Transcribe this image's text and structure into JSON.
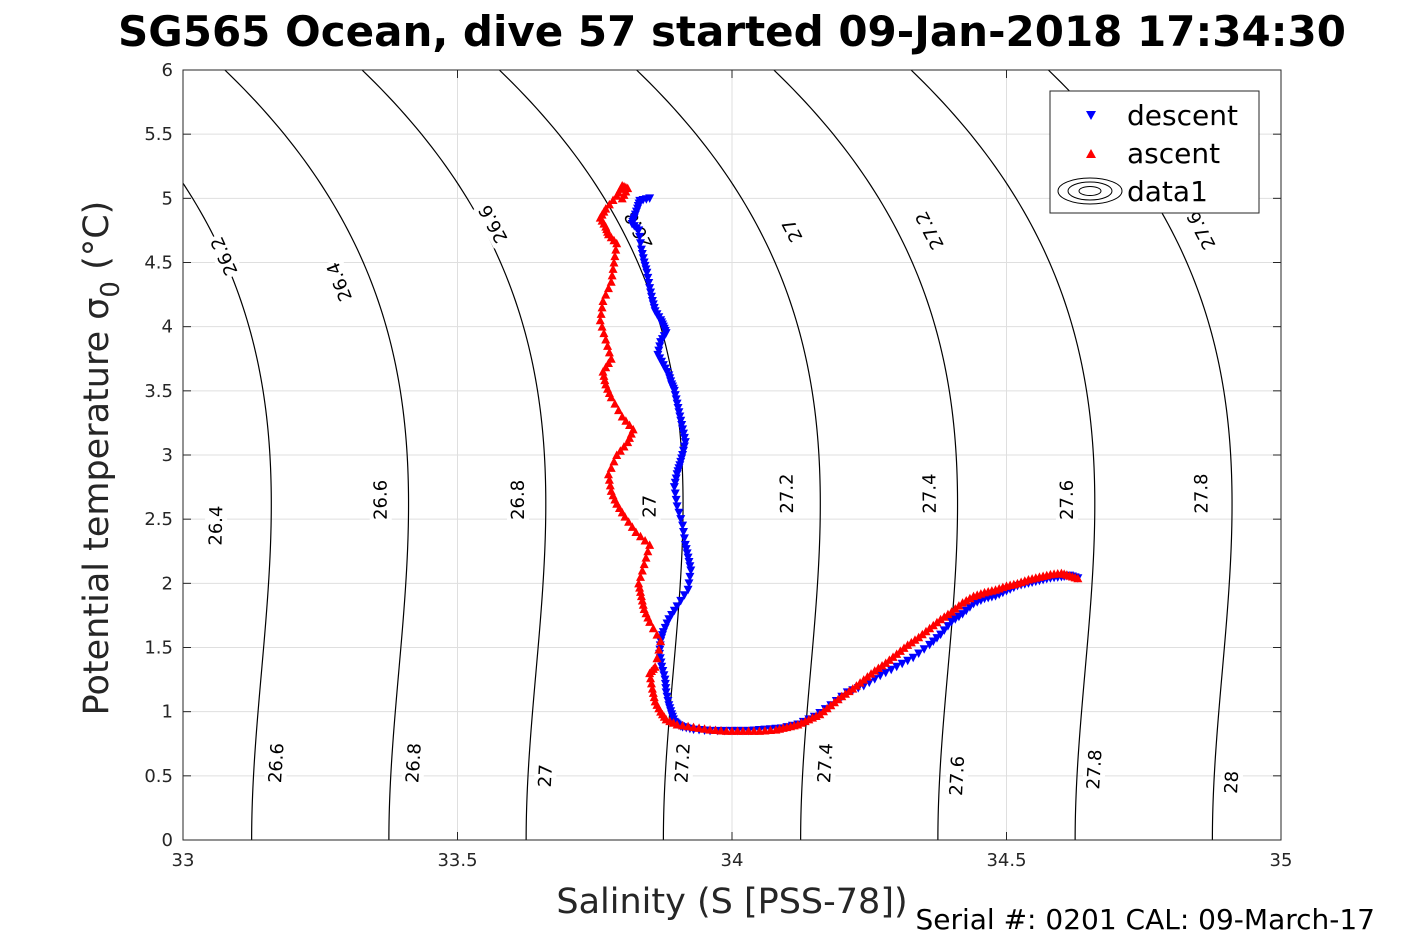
{
  "chart_data": {
    "type": "scatter",
    "title": "SG565 Ocean, dive 57 started 09-Jan-2018 17:34:30",
    "xlabel": "Salinity (S [PSS-78])",
    "ylabel_main": "Potential temperature σ",
    "ylabel_sub": "0",
    "ylabel_unit": "(°C)",
    "xlim": [
      33,
      35
    ],
    "ylim": [
      0,
      6
    ],
    "xticks": [
      "33",
      "33.5",
      "34",
      "34.5",
      "35"
    ],
    "yticks": [
      "0",
      "0.5",
      "1",
      "1.5",
      "2",
      "2.5",
      "3",
      "3.5",
      "4",
      "4.5",
      "5",
      "5.5",
      "6"
    ],
    "grid": true,
    "legend": {
      "position": "top-right",
      "entries": [
        {
          "name": "descent",
          "marker": "triangle-down",
          "color": "#0000ff"
        },
        {
          "name": "ascent",
          "marker": "triangle-up",
          "color": "#ff0000"
        },
        {
          "name": "data1",
          "marker": "contour",
          "color": "#000000"
        }
      ]
    },
    "contours": [
      {
        "level": 26.2,
        "labels": [
          {
            "x": 33.075,
            "y": 4.55
          }
        ]
      },
      {
        "level": 26.4,
        "labels": [
          {
            "x": 33.06,
            "y": 2.45
          },
          {
            "x": 33.285,
            "y": 4.35
          }
        ]
      },
      {
        "level": 26.6,
        "labels": [
          {
            "x": 33.17,
            "y": 0.6
          },
          {
            "x": 33.36,
            "y": 2.65
          },
          {
            "x": 33.565,
            "y": 4.8
          }
        ]
      },
      {
        "level": 26.8,
        "labels": [
          {
            "x": 33.42,
            "y": 0.6
          },
          {
            "x": 33.61,
            "y": 2.65
          },
          {
            "x": 33.83,
            "y": 4.75
          }
        ]
      },
      {
        "level": 27,
        "labels": [
          {
            "x": 33.66,
            "y": 0.5
          },
          {
            "x": 33.85,
            "y": 2.6
          },
          {
            "x": 34.11,
            "y": 4.75
          }
        ]
      },
      {
        "level": 27.2,
        "labels": [
          {
            "x": 33.91,
            "y": 0.6
          },
          {
            "x": 34.1,
            "y": 2.7
          },
          {
            "x": 34.36,
            "y": 4.75
          }
        ]
      },
      {
        "level": 27.4,
        "labels": [
          {
            "x": 34.17,
            "y": 0.6
          },
          {
            "x": 34.36,
            "y": 2.7
          }
        ]
      },
      {
        "level": 27.6,
        "labels": [
          {
            "x": 34.41,
            "y": 0.5
          },
          {
            "x": 34.61,
            "y": 2.65
          },
          {
            "x": 34.855,
            "y": 4.75
          }
        ]
      },
      {
        "level": 27.8,
        "labels": [
          {
            "x": 34.66,
            "y": 0.55
          },
          {
            "x": 34.855,
            "y": 2.7
          }
        ]
      },
      {
        "level": 28,
        "labels": [
          {
            "x": 34.91,
            "y": 0.45
          }
        ]
      }
    ],
    "series": [
      {
        "name": "descent",
        "color": "#0000ff",
        "marker": "triangle-down",
        "x": [
          33.85,
          33.832,
          33.828,
          33.822,
          33.818,
          33.83,
          33.835,
          33.84,
          33.845,
          33.85,
          33.855,
          33.86,
          33.87,
          33.875,
          33.88,
          33.87,
          33.865,
          33.875,
          33.885,
          33.89,
          33.895,
          33.9,
          33.905,
          33.91,
          33.915,
          33.91,
          33.905,
          33.9,
          33.895,
          33.9,
          33.91,
          33.915,
          33.92,
          33.925,
          33.92,
          33.9,
          33.885,
          33.875,
          33.87,
          33.868,
          33.872,
          33.878,
          33.88,
          33.885,
          33.89,
          33.895,
          33.9,
          33.91,
          33.93,
          33.96,
          34.0,
          34.03,
          34.06,
          34.09,
          34.12,
          34.15,
          34.18,
          34.21,
          34.24,
          34.27,
          34.3,
          34.33,
          34.36,
          34.38,
          34.4,
          34.42,
          34.44,
          34.46,
          34.48,
          34.5,
          34.52,
          34.54,
          34.56,
          34.58,
          34.6,
          34.615,
          34.63
        ],
        "y": [
          5.0,
          4.98,
          4.92,
          4.85,
          4.8,
          4.75,
          4.6,
          4.5,
          4.42,
          4.3,
          4.2,
          4.12,
          4.05,
          4.0,
          3.95,
          3.88,
          3.78,
          3.7,
          3.62,
          3.55,
          3.5,
          3.4,
          3.3,
          3.2,
          3.1,
          3.0,
          2.92,
          2.85,
          2.75,
          2.6,
          2.45,
          2.3,
          2.2,
          2.1,
          1.95,
          1.82,
          1.72,
          1.62,
          1.55,
          1.45,
          1.35,
          1.25,
          1.15,
          1.05,
          0.98,
          0.92,
          0.9,
          0.88,
          0.86,
          0.85,
          0.85,
          0.85,
          0.86,
          0.87,
          0.9,
          0.96,
          1.05,
          1.15,
          1.2,
          1.28,
          1.35,
          1.42,
          1.52,
          1.6,
          1.7,
          1.76,
          1.84,
          1.88,
          1.9,
          1.94,
          1.98,
          2.0,
          2.02,
          2.04,
          2.05,
          2.06,
          2.04
        ]
      },
      {
        "name": "ascent",
        "color": "#ff0000",
        "marker": "triangle-up",
        "x": [
          34.63,
          34.615,
          34.6,
          34.58,
          34.56,
          34.54,
          34.52,
          34.5,
          34.48,
          34.46,
          34.44,
          34.42,
          34.4,
          34.38,
          34.36,
          34.34,
          34.32,
          34.3,
          34.28,
          34.26,
          34.24,
          34.22,
          34.2,
          34.18,
          34.16,
          34.14,
          34.12,
          34.1,
          34.08,
          34.05,
          34.02,
          33.99,
          33.96,
          33.93,
          33.9,
          33.88,
          33.87,
          33.86,
          33.855,
          33.85,
          33.86,
          33.87,
          33.85,
          33.84,
          33.835,
          33.83,
          33.84,
          33.85,
          33.825,
          33.805,
          33.79,
          33.78,
          33.775,
          33.79,
          33.81,
          33.82,
          33.8,
          33.78,
          33.77,
          33.765,
          33.78,
          33.77,
          33.76,
          33.765,
          33.78,
          33.785,
          33.79,
          33.775,
          33.77,
          33.76,
          33.77,
          33.79,
          33.8,
          33.81,
          33.8
        ],
        "y": [
          2.04,
          2.06,
          2.08,
          2.07,
          2.05,
          2.03,
          2.0,
          1.98,
          1.95,
          1.93,
          1.9,
          1.85,
          1.78,
          1.72,
          1.65,
          1.58,
          1.52,
          1.45,
          1.38,
          1.32,
          1.25,
          1.18,
          1.12,
          1.05,
          0.98,
          0.94,
          0.9,
          0.88,
          0.86,
          0.85,
          0.85,
          0.85,
          0.86,
          0.88,
          0.9,
          0.94,
          1.0,
          1.08,
          1.18,
          1.3,
          1.35,
          1.55,
          1.7,
          1.8,
          1.9,
          2.0,
          2.15,
          2.3,
          2.4,
          2.52,
          2.62,
          2.72,
          2.85,
          3.0,
          3.1,
          3.2,
          3.3,
          3.45,
          3.55,
          3.65,
          3.75,
          3.9,
          4.05,
          4.2,
          4.35,
          4.5,
          4.65,
          4.72,
          4.78,
          4.85,
          4.92,
          5.02,
          5.1,
          5.08,
          5.0
        ]
      }
    ]
  },
  "footer": {
    "serial": "Serial #: 0201  CAL: 09-March-17"
  }
}
